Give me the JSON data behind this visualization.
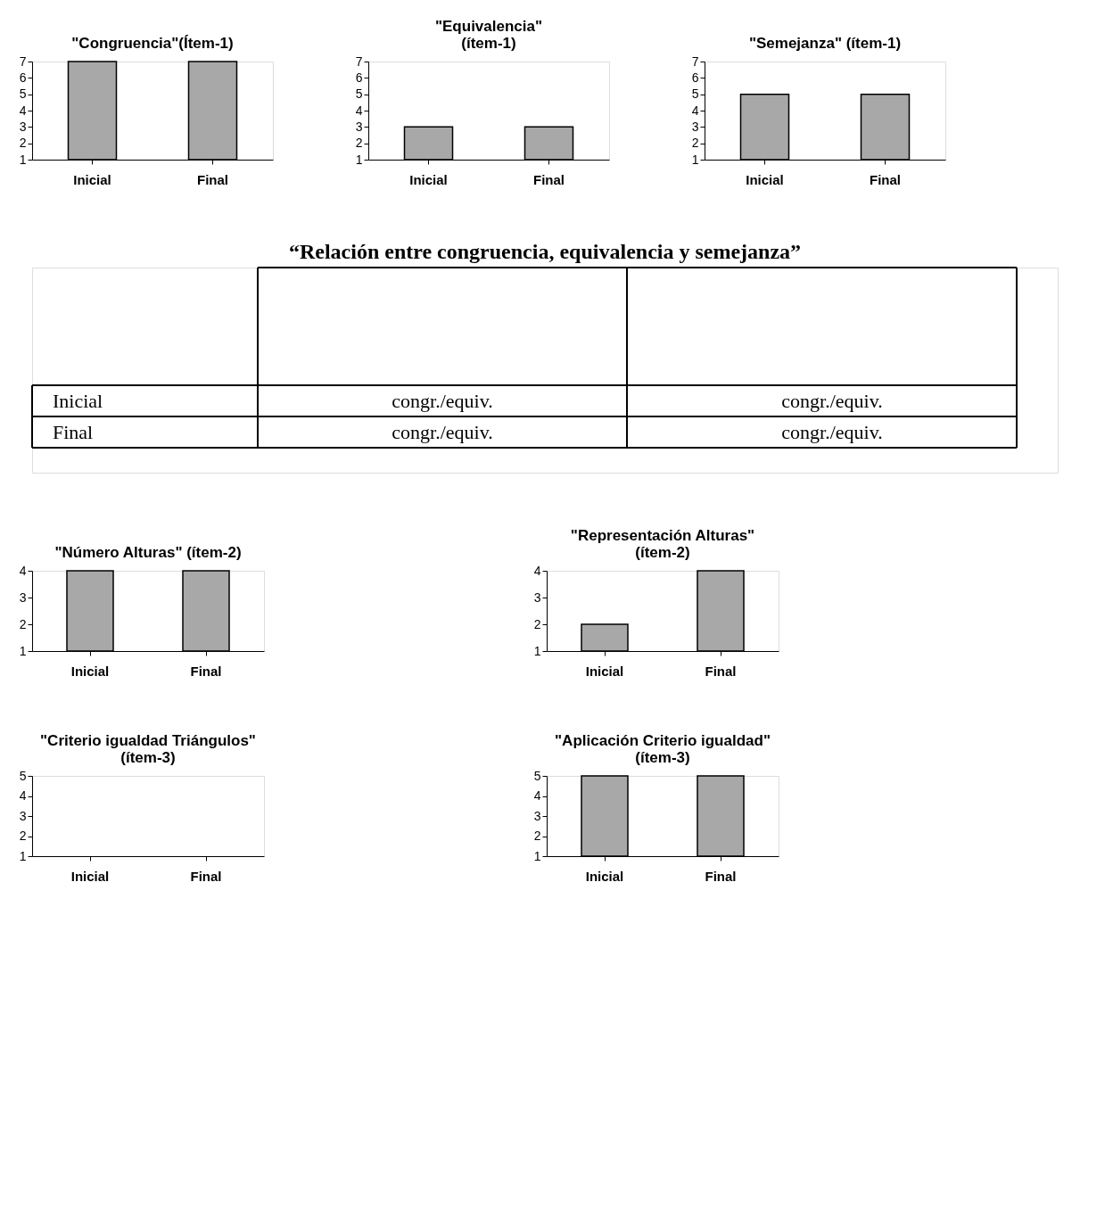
{
  "chart_data": [
    {
      "type": "bar",
      "title": "\"Congruencia\"(Ítem-1)",
      "categories": [
        "Inicial",
        "Final"
      ],
      "values": [
        7,
        7
      ],
      "color": "#a8a8a8",
      "ylim": [
        1,
        7
      ],
      "yticks": [
        1,
        2,
        3,
        4,
        5,
        6,
        7
      ],
      "grid": false
    },
    {
      "type": "bar",
      "title": "\"Equivalencia\"\n(ítem-1)",
      "categories": [
        "Inicial",
        "Final"
      ],
      "values": [
        3,
        3
      ],
      "color": "#a8a8a8",
      "ylim": [
        1,
        7
      ],
      "yticks": [
        1,
        2,
        3,
        4,
        5,
        6,
        7
      ],
      "grid": false
    },
    {
      "type": "bar",
      "title": "\"Semejanza\" (ítem-1)",
      "categories": [
        "Inicial",
        "Final"
      ],
      "values": [
        5,
        5
      ],
      "color": "#a8a8a8",
      "ylim": [
        1,
        7
      ],
      "yticks": [
        1,
        2,
        3,
        4,
        5,
        6,
        7
      ],
      "grid": false
    },
    {
      "type": "other",
      "title": "“Relación entre congruencia, equivalencia y semejanza”",
      "annotations": [
        "Inicial",
        "congr./equiv.",
        "congr./equiv.",
        "Final",
        "congr./equiv.",
        "congr./equiv."
      ]
    },
    {
      "type": "bar",
      "title": "\"Número Alturas\" (ítem-2)",
      "categories": [
        "Inicial",
        "Final"
      ],
      "values": [
        4,
        4
      ],
      "color": "#a8a8a8",
      "ylim": [
        1,
        4
      ],
      "yticks": [
        1,
        2,
        3,
        4
      ],
      "grid": false
    },
    {
      "type": "bar",
      "title": "\"Representación Alturas\"\n(ítem-2)",
      "categories": [
        "Inicial",
        "Final"
      ],
      "values": [
        2,
        4
      ],
      "color": "#a8a8a8",
      "ylim": [
        1,
        4
      ],
      "yticks": [
        1,
        2,
        3,
        4
      ],
      "grid": false
    },
    {
      "type": "bar",
      "title": "\"Criterio igualdad Triángulos\"\n(ítem-3)",
      "categories": [
        "Inicial",
        "Final"
      ],
      "values": [
        null,
        null
      ],
      "color": "#a8a8a8",
      "ylim": [
        1,
        5
      ],
      "yticks": [
        1,
        2,
        3,
        4,
        5
      ],
      "grid": false
    },
    {
      "type": "bar",
      "title": "\"Aplicación Criterio igualdad\"\n(ítem-3)",
      "categories": [
        "Inicial",
        "Final"
      ],
      "values": [
        5,
        5
      ],
      "color": "#a8a8a8",
      "ylim": [
        1,
        5
      ],
      "yticks": [
        1,
        2,
        3,
        4,
        5
      ],
      "grid": false
    }
  ]
}
